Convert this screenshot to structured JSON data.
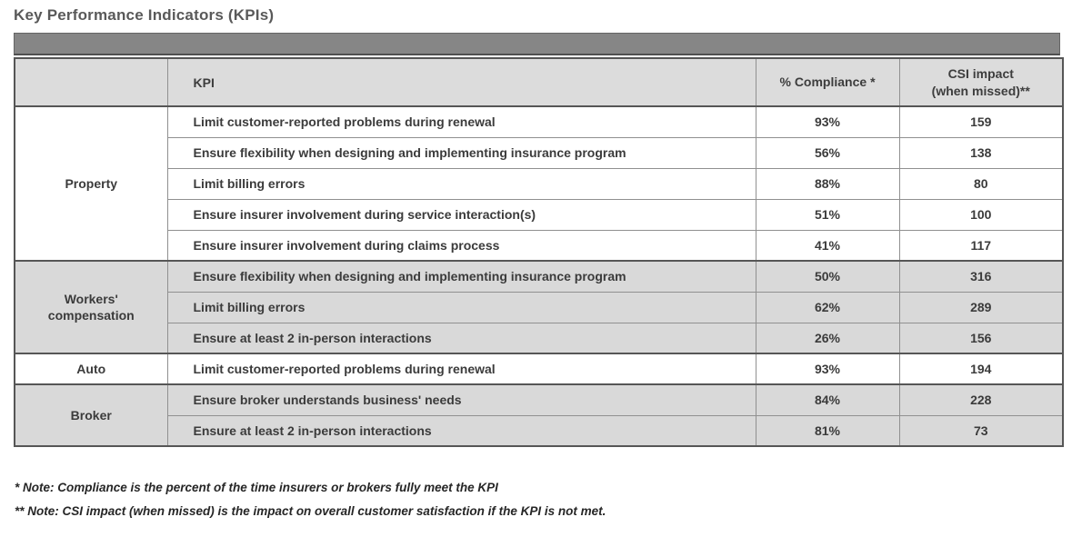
{
  "title": "Key Performance Indicators (KPIs)",
  "table": {
    "header": {
      "category": "",
      "kpi": "KPI",
      "compliance": "% Compliance *",
      "csi_line1": "CSI impact",
      "csi_line2": "(when missed)**"
    },
    "sections": [
      {
        "category": "Property",
        "shaded": false,
        "rows": [
          {
            "kpi": "Limit customer-reported problems during renewal",
            "compliance": "93%",
            "csi": "159"
          },
          {
            "kpi": "Ensure flexibility when designing and implementing insurance program",
            "compliance": "56%",
            "csi": "138"
          },
          {
            "kpi": "Limit billing errors",
            "compliance": "88%",
            "csi": "80"
          },
          {
            "kpi": "Ensure insurer involvement during service interaction(s)",
            "compliance": "51%",
            "csi": "100"
          },
          {
            "kpi": "Ensure insurer involvement during claims process",
            "compliance": "41%",
            "csi": "117"
          }
        ]
      },
      {
        "category": "Workers' compensation",
        "shaded": true,
        "rows": [
          {
            "kpi": "Ensure flexibility when designing and implementing insurance program",
            "compliance": "50%",
            "csi": "316"
          },
          {
            "kpi": "Limit billing errors",
            "compliance": "62%",
            "csi": "289"
          },
          {
            "kpi": "Ensure at least 2 in-person interactions",
            "compliance": "26%",
            "csi": "156"
          }
        ]
      },
      {
        "category": "Auto",
        "shaded": false,
        "rows": [
          {
            "kpi": "Limit customer-reported problems during renewal",
            "compliance": "93%",
            "csi": "194"
          }
        ]
      },
      {
        "category": "Broker",
        "shaded": true,
        "rows": [
          {
            "kpi": "Ensure broker understands business' needs",
            "compliance": "84%",
            "csi": "228"
          },
          {
            "kpi": "Ensure at least 2 in-person interactions",
            "compliance": "81%",
            "csi": "73"
          }
        ]
      }
    ]
  },
  "notes": [
    "* Note: Compliance is the percent of the time insurers or brokers fully meet the KPI",
    "** Note: CSI impact (when missed) is the impact on overall customer satisfaction if the KPI is not met."
  ],
  "colors": {
    "band": "#868686",
    "header_bg": "#dcdcdc",
    "shaded_row_bg": "#d9d9d9",
    "border_dark": "#565656",
    "title_text": "#595959"
  }
}
